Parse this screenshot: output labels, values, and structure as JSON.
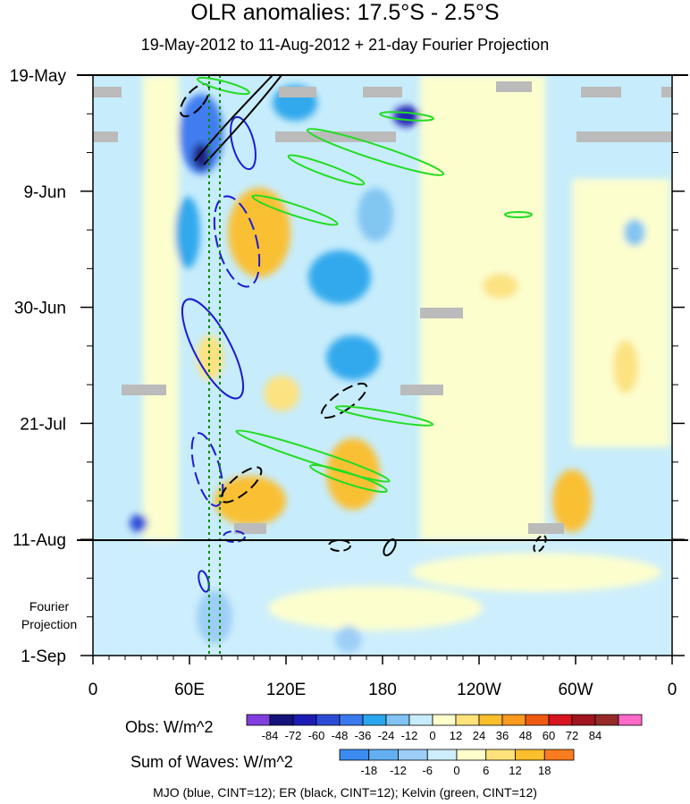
{
  "chart_data": {
    "type": "heatmap",
    "title": "OLR anomalies: 17.5°S - 2.5°S",
    "subtitle": "19-May-2012 to 11-Aug-2012 + 21-day Fourier Projection",
    "x_ticks": [
      "0",
      "60E",
      "120E",
      "180",
      "120W",
      "60W",
      "0"
    ],
    "x_range_deg_east": [
      0,
      360
    ],
    "y_ticks": [
      "19-May",
      "9-Jun",
      "30-Jun",
      "21-Jul",
      "11-Aug",
      "1-Sep"
    ],
    "y_range": [
      "2012-05-19",
      "2012-09-01"
    ],
    "obs_end_date": "2012-08-11",
    "projection_label": "Fourier Projection",
    "obs_colorbar": {
      "label": "Obs: W/m^2",
      "levels": [
        "-84",
        "-72",
        "-60",
        "-48",
        "-36",
        "-24",
        "-12",
        "0",
        "12",
        "24",
        "36",
        "48",
        "60",
        "72",
        "84"
      ],
      "colors": [
        "#7f3fe0",
        "#14147a",
        "#1c1cb4",
        "#2c4cd8",
        "#3a78f0",
        "#2aa6ec",
        "#7fc4f2",
        "#c7ecfb",
        "#ffffcc",
        "#ffe27a",
        "#fdbe2c",
        "#fa9a1e",
        "#f05a10",
        "#d8141e",
        "#a0141e",
        "#962a2a",
        "#ff69c8"
      ]
    },
    "waves_colorbar": {
      "label": "Sum of Waves: W/m^2",
      "levels": [
        "-18",
        "-12",
        "-6",
        "0",
        "6",
        "12",
        "18"
      ],
      "colors": [
        "#3a8cf0",
        "#62b0f2",
        "#9bcdf6",
        "#cdeefc",
        "#ffffcc",
        "#ffe27a",
        "#fdbe2c",
        "#fa7c1e"
      ]
    },
    "mjo_filter_lines_deg_east": [
      72,
      80
    ],
    "contours": "MJO (blue, CINT=12); ER (black, CINT=12); Kelvin (green, CINT=12)"
  }
}
